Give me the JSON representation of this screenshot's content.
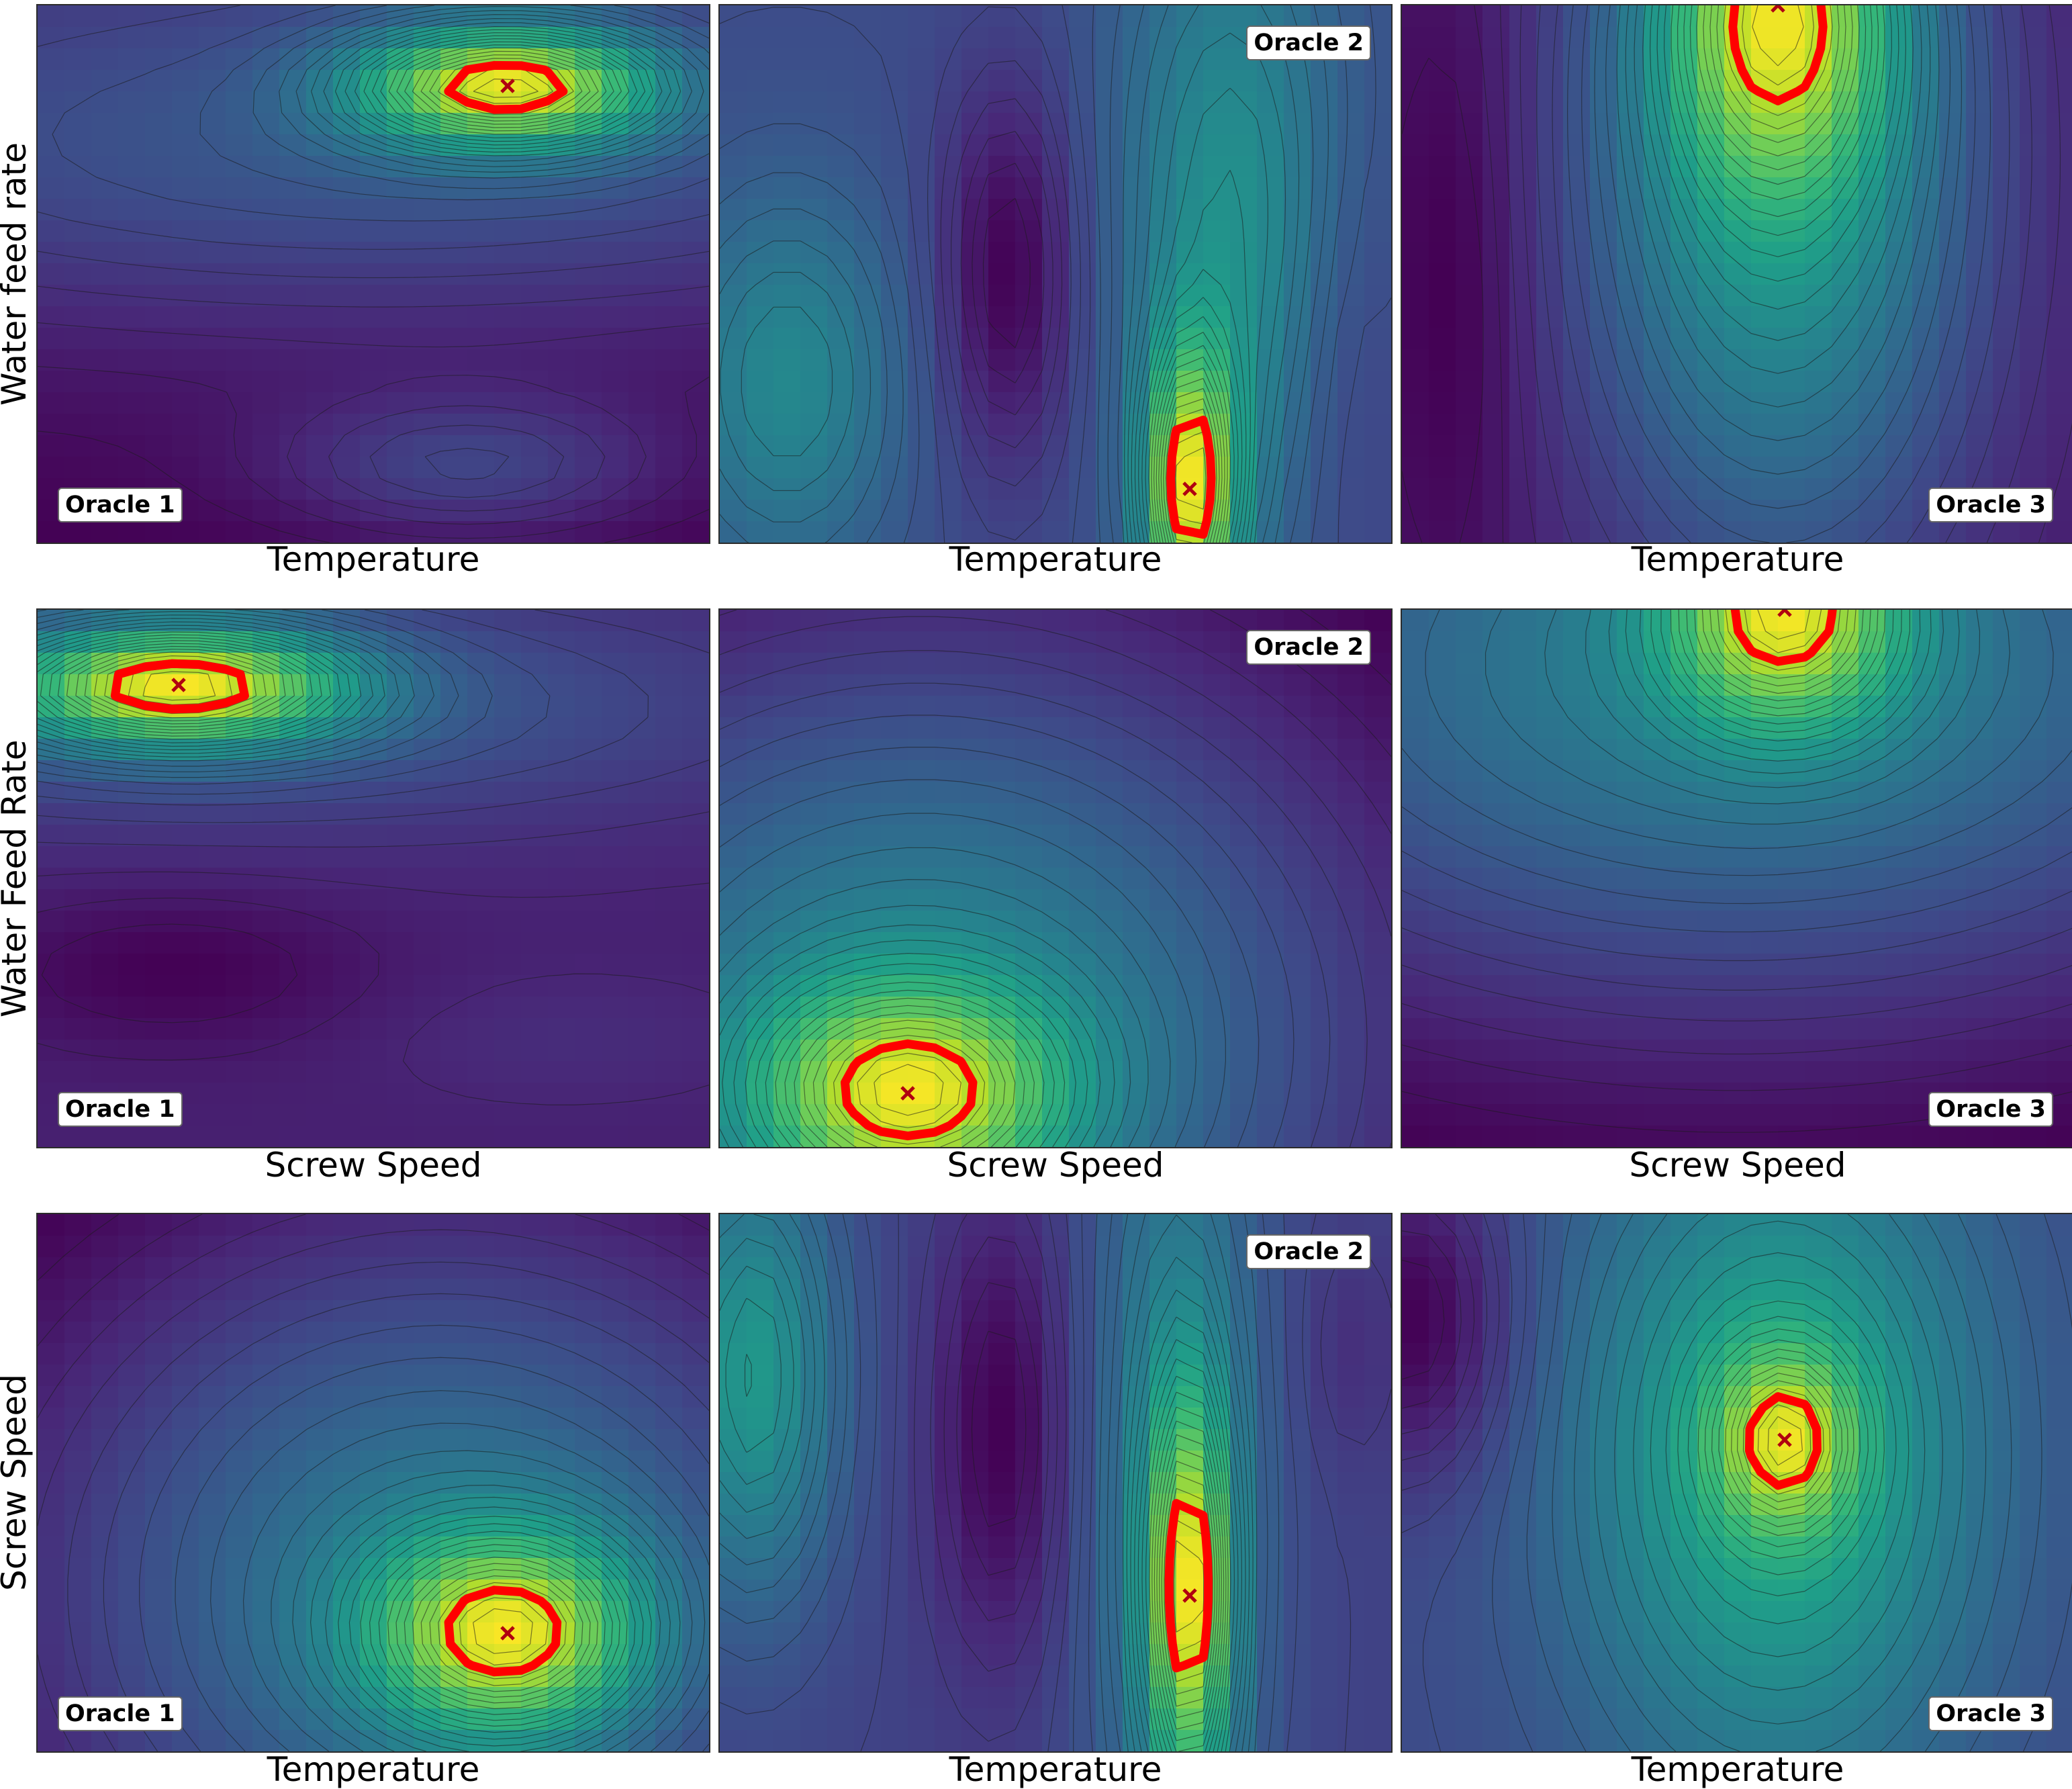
{
  "chart_data": [
    {
      "type": "contour",
      "row": 0,
      "col": 0,
      "xlabel": "Temperature",
      "ylabel": "Water feed rate",
      "oracle": "Oracle 1",
      "badge_pos": "bottom-left",
      "colormap": "viridis",
      "optimum_marker": "x",
      "peaks": [
        {
          "x": 0.7,
          "y": 0.85,
          "sx": 0.16,
          "sy": 0.08,
          "a": 1.0
        },
        {
          "x": 0.64,
          "y": 0.14,
          "sx": 0.2,
          "sy": 0.09,
          "a": 0.25
        },
        {
          "x": 0.5,
          "y": 0.72,
          "sx": 0.7,
          "sy": 0.22,
          "a": 0.25
        }
      ],
      "base": 0.0,
      "gx": 0.0,
      "gy": 0.15,
      "optimum": {
        "x": 0.7,
        "y": 0.85
      }
    },
    {
      "type": "contour",
      "row": 0,
      "col": 1,
      "xlabel": "Temperature",
      "ylabel": "",
      "oracle": "Oracle 2",
      "badge_pos": "top-right",
      "colormap": "viridis",
      "optimum_marker": "x",
      "peaks": [
        {
          "x": 0.7,
          "y": 0.1,
          "sx": 0.045,
          "sy": 0.18,
          "a": 1.0
        },
        {
          "x": 0.76,
          "y": 0.6,
          "sx": 0.12,
          "sy": 0.45,
          "a": 0.4
        },
        {
          "x": 0.1,
          "y": 0.3,
          "sx": 0.12,
          "sy": 0.25,
          "a": 0.35
        },
        {
          "x": 0.43,
          "y": 0.5,
          "sx": 0.07,
          "sy": 0.25,
          "a": -0.35
        },
        {
          "x": 0.93,
          "y": 0.3,
          "sx": 0.06,
          "sy": 0.3,
          "a": -0.1
        }
      ],
      "base": 0.38,
      "gx": 0.0,
      "gy": 0.0,
      "optimum": {
        "x": 0.7,
        "y": 0.1
      }
    },
    {
      "type": "contour",
      "row": 0,
      "col": 2,
      "xlabel": "Temperature",
      "ylabel": "",
      "oracle": "Oracle 3",
      "badge_pos": "bottom-right",
      "colormap": "viridis",
      "optimum_marker": "x",
      "peaks": [
        {
          "x": 0.56,
          "y": 1.0,
          "sx": 0.12,
          "sy": 0.22,
          "a": 0.55
        },
        {
          "x": 0.56,
          "y": 0.7,
          "sx": 0.22,
          "sy": 0.55,
          "a": 0.5
        },
        {
          "x": 0.08,
          "y": 0.5,
          "sx": 0.07,
          "sy": 0.4,
          "a": -0.1
        }
      ],
      "base": 0.12,
      "gx": 0.0,
      "gy": 0.0,
      "optimum": {
        "x": 0.56,
        "y": 1.0
      }
    },
    {
      "type": "contour",
      "row": 1,
      "col": 0,
      "xlabel": "Screw Speed",
      "ylabel": "Water Feed Rate",
      "oracle": "Oracle 1",
      "badge_pos": "bottom-left",
      "colormap": "viridis",
      "optimum_marker": "x",
      "peaks": [
        {
          "x": 0.21,
          "y": 0.86,
          "sx": 0.18,
          "sy": 0.08,
          "a": 1.0
        },
        {
          "x": 0.3,
          "y": 0.82,
          "sx": 0.6,
          "sy": 0.16,
          "a": 0.25
        },
        {
          "x": 0.2,
          "y": 0.33,
          "sx": 0.2,
          "sy": 0.1,
          "a": -0.12
        },
        {
          "x": 0.78,
          "y": 0.2,
          "sx": 0.2,
          "sy": 0.08,
          "a": 0.05
        }
      ],
      "base": 0.25,
      "gx": 0.0,
      "gy": 0.0,
      "optimum": {
        "x": 0.21,
        "y": 0.86
      }
    },
    {
      "type": "contour",
      "row": 1,
      "col": 1,
      "xlabel": "Screw Speed",
      "ylabel": "",
      "oracle": "Oracle 2",
      "badge_pos": "top-right",
      "colormap": "viridis",
      "optimum_marker": "x",
      "peaks": [
        {
          "x": 0.28,
          "y": 0.1,
          "sx": 0.16,
          "sy": 0.14,
          "a": 0.55
        },
        {
          "x": 0.3,
          "y": 0.2,
          "sx": 0.55,
          "sy": 0.6,
          "a": 0.55
        }
      ],
      "base": 0.28,
      "gx": 0.0,
      "gy": 0.0,
      "optimum": {
        "x": 0.28,
        "y": 0.1
      }
    },
    {
      "type": "contour",
      "row": 1,
      "col": 2,
      "xlabel": "Screw Speed",
      "ylabel": "",
      "oracle": "Oracle 3",
      "badge_pos": "bottom-right",
      "colormap": "viridis",
      "optimum_marker": "x",
      "peaks": [
        {
          "x": 0.57,
          "y": 1.0,
          "sx": 0.12,
          "sy": 0.15,
          "a": 0.45
        },
        {
          "x": 0.5,
          "y": 0.9,
          "sx": 0.7,
          "sy": 0.5,
          "a": 0.4
        }
      ],
      "base": 0.35,
      "gx": 0.0,
      "gy": 0.0,
      "optimum": {
        "x": 0.57,
        "y": 1.0
      }
    },
    {
      "type": "contour",
      "row": 2,
      "col": 0,
      "xlabel": "Temperature",
      "ylabel": "Screw Speed",
      "oracle": "Oracle 1",
      "badge_pos": "bottom-left",
      "colormap": "viridis",
      "optimum_marker": "x",
      "peaks": [
        {
          "x": 0.7,
          "y": 0.22,
          "sx": 0.14,
          "sy": 0.13,
          "a": 0.6
        },
        {
          "x": 0.6,
          "y": 0.3,
          "sx": 0.5,
          "sy": 0.55,
          "a": 0.5
        }
      ],
      "base": 0.3,
      "gx": 0.0,
      "gy": 0.0,
      "optimum": {
        "x": 0.7,
        "y": 0.22
      }
    },
    {
      "type": "contour",
      "row": 2,
      "col": 1,
      "xlabel": "Temperature",
      "ylabel": "",
      "oracle": "Oracle 2",
      "badge_pos": "top-right",
      "colormap": "viridis",
      "optimum_marker": "x",
      "peaks": [
        {
          "x": 0.7,
          "y": 0.29,
          "sx": 0.04,
          "sy": 0.25,
          "a": 0.9
        },
        {
          "x": 0.68,
          "y": 0.5,
          "sx": 0.09,
          "sy": 0.6,
          "a": 0.4
        },
        {
          "x": 0.05,
          "y": 0.7,
          "sx": 0.09,
          "sy": 0.3,
          "a": 0.5
        },
        {
          "x": 0.42,
          "y": 0.6,
          "sx": 0.07,
          "sy": 0.3,
          "a": -0.3
        },
        {
          "x": 0.94,
          "y": 0.75,
          "sx": 0.05,
          "sy": 0.15,
          "a": -0.1
        }
      ],
      "base": 0.38,
      "gx": 0.0,
      "gy": 0.0,
      "optimum": {
        "x": 0.7,
        "y": 0.29
      }
    },
    {
      "type": "contour",
      "row": 2,
      "col": 2,
      "xlabel": "Temperature",
      "ylabel": "",
      "oracle": "Oracle 3",
      "badge_pos": "bottom-right",
      "colormap": "viridis",
      "optimum_marker": "x",
      "peaks": [
        {
          "x": 0.57,
          "y": 0.58,
          "sx": 0.07,
          "sy": 0.11,
          "a": 0.5
        },
        {
          "x": 0.56,
          "y": 0.55,
          "sx": 0.22,
          "sy": 0.45,
          "a": 0.5
        },
        {
          "x": 0.02,
          "y": 0.8,
          "sx": 0.1,
          "sy": 0.2,
          "a": -0.3
        }
      ],
      "base": 0.25,
      "gx": 0.0,
      "gy": 0.0,
      "optimum": {
        "x": 0.57,
        "y": 0.58
      }
    }
  ]
}
